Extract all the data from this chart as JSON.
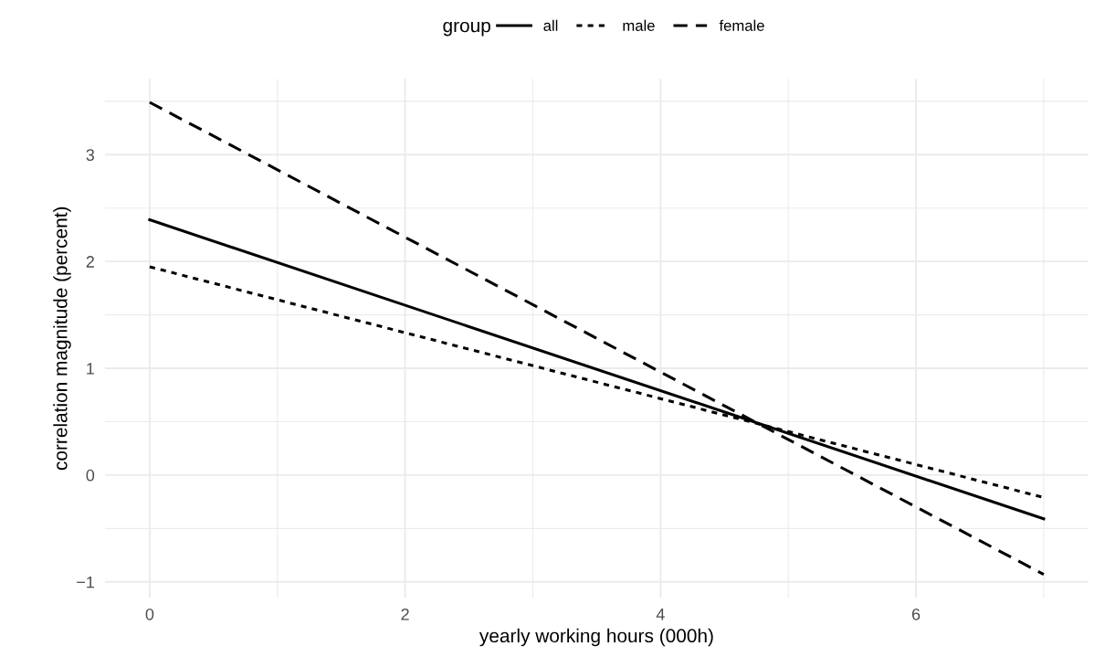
{
  "chart_data": {
    "type": "line",
    "xlabel": "yearly working hours (000h)",
    "ylabel": "correlation magnitude (percent)",
    "legend_title": "group",
    "x": [
      0,
      7
    ],
    "series": [
      {
        "name": "all",
        "color": "#000000",
        "line_style": "solid",
        "values": [
          2.39,
          -0.41
        ]
      },
      {
        "name": "male",
        "color": "#000000",
        "line_style": "dotted",
        "values": [
          1.95,
          -0.21
        ]
      },
      {
        "name": "female",
        "color": "#000000",
        "line_style": "dashed",
        "values": [
          3.49,
          -0.93
        ]
      }
    ],
    "xlim": [
      -0.35,
      7.35
    ],
    "ylim": [
      -1.15,
      3.71
    ],
    "xticks": [
      0,
      2,
      4,
      6
    ],
    "yticks": [
      -1,
      0,
      1,
      2,
      3
    ],
    "grid": true,
    "legend": "top",
    "marker": "none"
  }
}
